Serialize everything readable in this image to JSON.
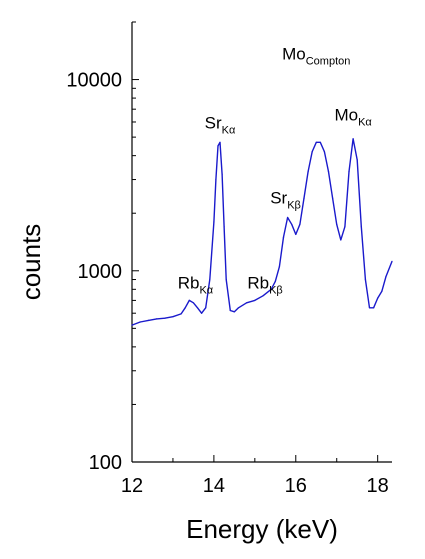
{
  "chart_data": {
    "type": "line",
    "xlabel": "Energy (keV)",
    "ylabel": "counts",
    "xlim": [
      12.0,
      18.35
    ],
    "ylim": [
      100,
      20000
    ],
    "yscale": "log",
    "grid": false,
    "x_ticks": [
      {
        "value": 12,
        "label": "12"
      },
      {
        "value": 14,
        "label": "14"
      },
      {
        "value": 16,
        "label": "16"
      },
      {
        "value": 18,
        "label": "18"
      }
    ],
    "y_ticks": [
      {
        "value": 100,
        "label": "100"
      },
      {
        "value": 1000,
        "label": "1000"
      },
      {
        "value": 10000,
        "label": "10000"
      }
    ],
    "series_color": "#1a1acc",
    "series": [
      {
        "x": [
          12.0,
          12.2,
          12.4,
          12.6,
          12.8,
          13.0,
          13.2,
          13.3,
          13.4,
          13.5,
          13.6,
          13.7,
          13.8,
          13.9,
          14.0,
          14.05,
          14.1,
          14.15,
          14.2,
          14.25,
          14.3,
          14.4,
          14.5,
          14.6,
          14.8,
          15.0,
          15.2,
          15.4,
          15.5,
          15.6,
          15.7,
          15.8,
          15.9,
          16.0,
          16.1,
          16.2,
          16.3,
          16.4,
          16.5,
          16.6,
          16.7,
          16.8,
          16.9,
          17.0,
          17.1,
          17.2,
          17.3,
          17.4,
          17.5,
          17.6,
          17.7,
          17.8,
          17.9,
          18.0,
          18.1,
          18.2,
          18.35
        ],
        "y": [
          520,
          540,
          550,
          560,
          565,
          575,
          595,
          640,
          700,
          680,
          640,
          600,
          640,
          900,
          1800,
          3000,
          4500,
          4700,
          3200,
          1700,
          900,
          620,
          610,
          640,
          680,
          700,
          740,
          800,
          880,
          1050,
          1500,
          1900,
          1750,
          1550,
          1750,
          2400,
          3300,
          4200,
          4700,
          4700,
          4200,
          3300,
          2400,
          1750,
          1450,
          1700,
          3300,
          4900,
          3800,
          1700,
          900,
          640,
          640,
          720,
          780,
          930,
          1120
        ]
      }
    ],
    "annotations": [
      {
        "x": 13.55,
        "y": 700,
        "main": "Rb",
        "sub": "Kα"
      },
      {
        "x": 14.15,
        "y": 4800,
        "main": "Sr",
        "sub": "Kα"
      },
      {
        "x": 15.25,
        "y": 700,
        "main": "Rb",
        "sub": "Kβ"
      },
      {
        "x": 15.75,
        "y": 1950,
        "main": "Sr",
        "sub": "Kβ"
      },
      {
        "x": 16.5,
        "y": 11000,
        "main": "Mo",
        "sub": "Compton"
      },
      {
        "x": 17.4,
        "y": 5300,
        "main": "Mo",
        "sub": "Kα"
      }
    ]
  }
}
